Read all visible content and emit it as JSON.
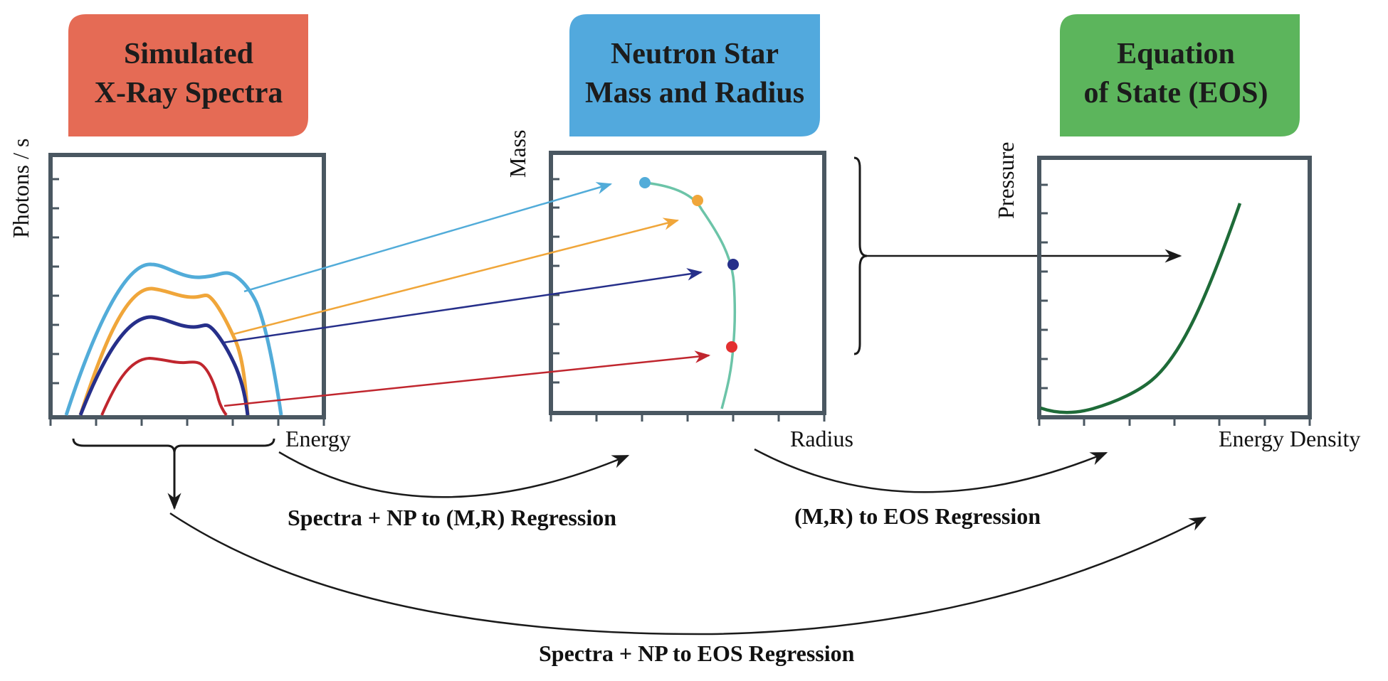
{
  "headers": {
    "spectra": {
      "line1": "Simulated",
      "line2": "X-Ray Spectra",
      "color": "#e56b55"
    },
    "mass_radius": {
      "line1": "Neutron Star",
      "line2": "Mass and Radius",
      "color": "#52a9dd"
    },
    "eos": {
      "line1": "Equation",
      "line2": "of State (EOS)",
      "color": "#5cb55c"
    }
  },
  "axes": {
    "spectra": {
      "x": "Energy",
      "y": "Photons / s"
    },
    "mass_radius": {
      "x": "Radius",
      "y": "Mass"
    },
    "eos": {
      "x": "Energy Density",
      "y": "Pressure"
    }
  },
  "regressions": {
    "spectra_to_mr": "Spectra + NP to (M,R) Regression",
    "mr_to_eos": "(M,R) to EOS Regression",
    "spectra_to_eos": "Spectra + NP to EOS Regression"
  },
  "colors": {
    "light_blue": "#52acd9",
    "orange": "#f0a63a",
    "navy": "#262f8a",
    "red": "#c0262e",
    "teal_curve": "#6cc4a8",
    "eos_curve": "#1e6b38",
    "frame": "#4a5761",
    "arrow": "#1a1a1a"
  }
}
